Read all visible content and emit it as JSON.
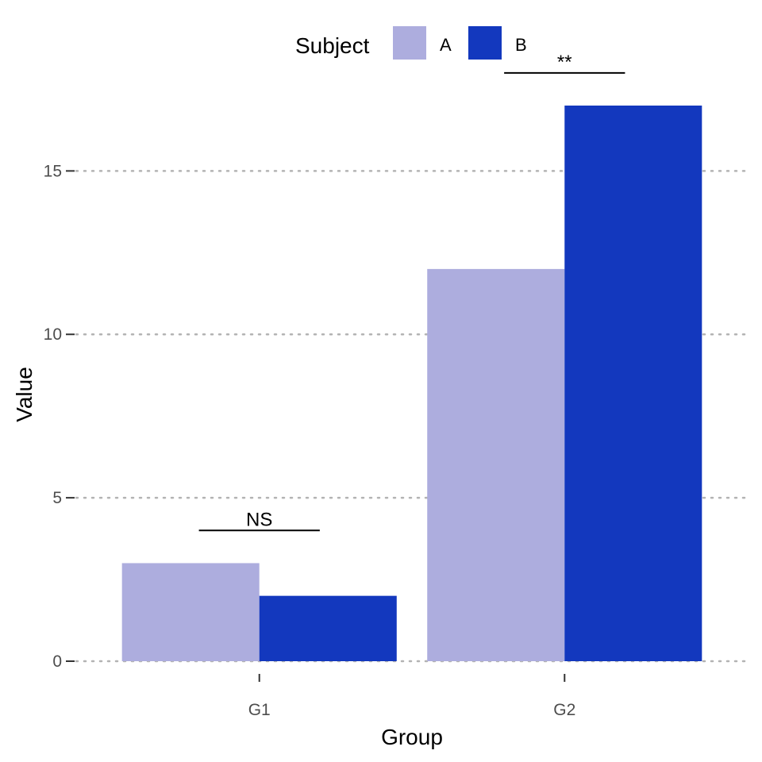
{
  "chart_data": {
    "type": "bar",
    "categories": [
      "G1",
      "G2"
    ],
    "series": [
      {
        "name": "A",
        "values": [
          3,
          12
        ],
        "color": "#ADADDE"
      },
      {
        "name": "B",
        "values": [
          2,
          17
        ],
        "color": "#1338BE"
      }
    ],
    "xlabel": "Group",
    "ylabel": "Value",
    "ylim": [
      0,
      17.85
    ],
    "yticks": [
      0,
      5,
      10,
      15
    ],
    "grid": "horizontal-dotted",
    "legend": {
      "title": "Subject",
      "position": "top"
    },
    "annotations": [
      {
        "category": "G1",
        "label": "NS",
        "y": 4
      },
      {
        "category": "G2",
        "label": "**",
        "y": 18
      }
    ]
  }
}
